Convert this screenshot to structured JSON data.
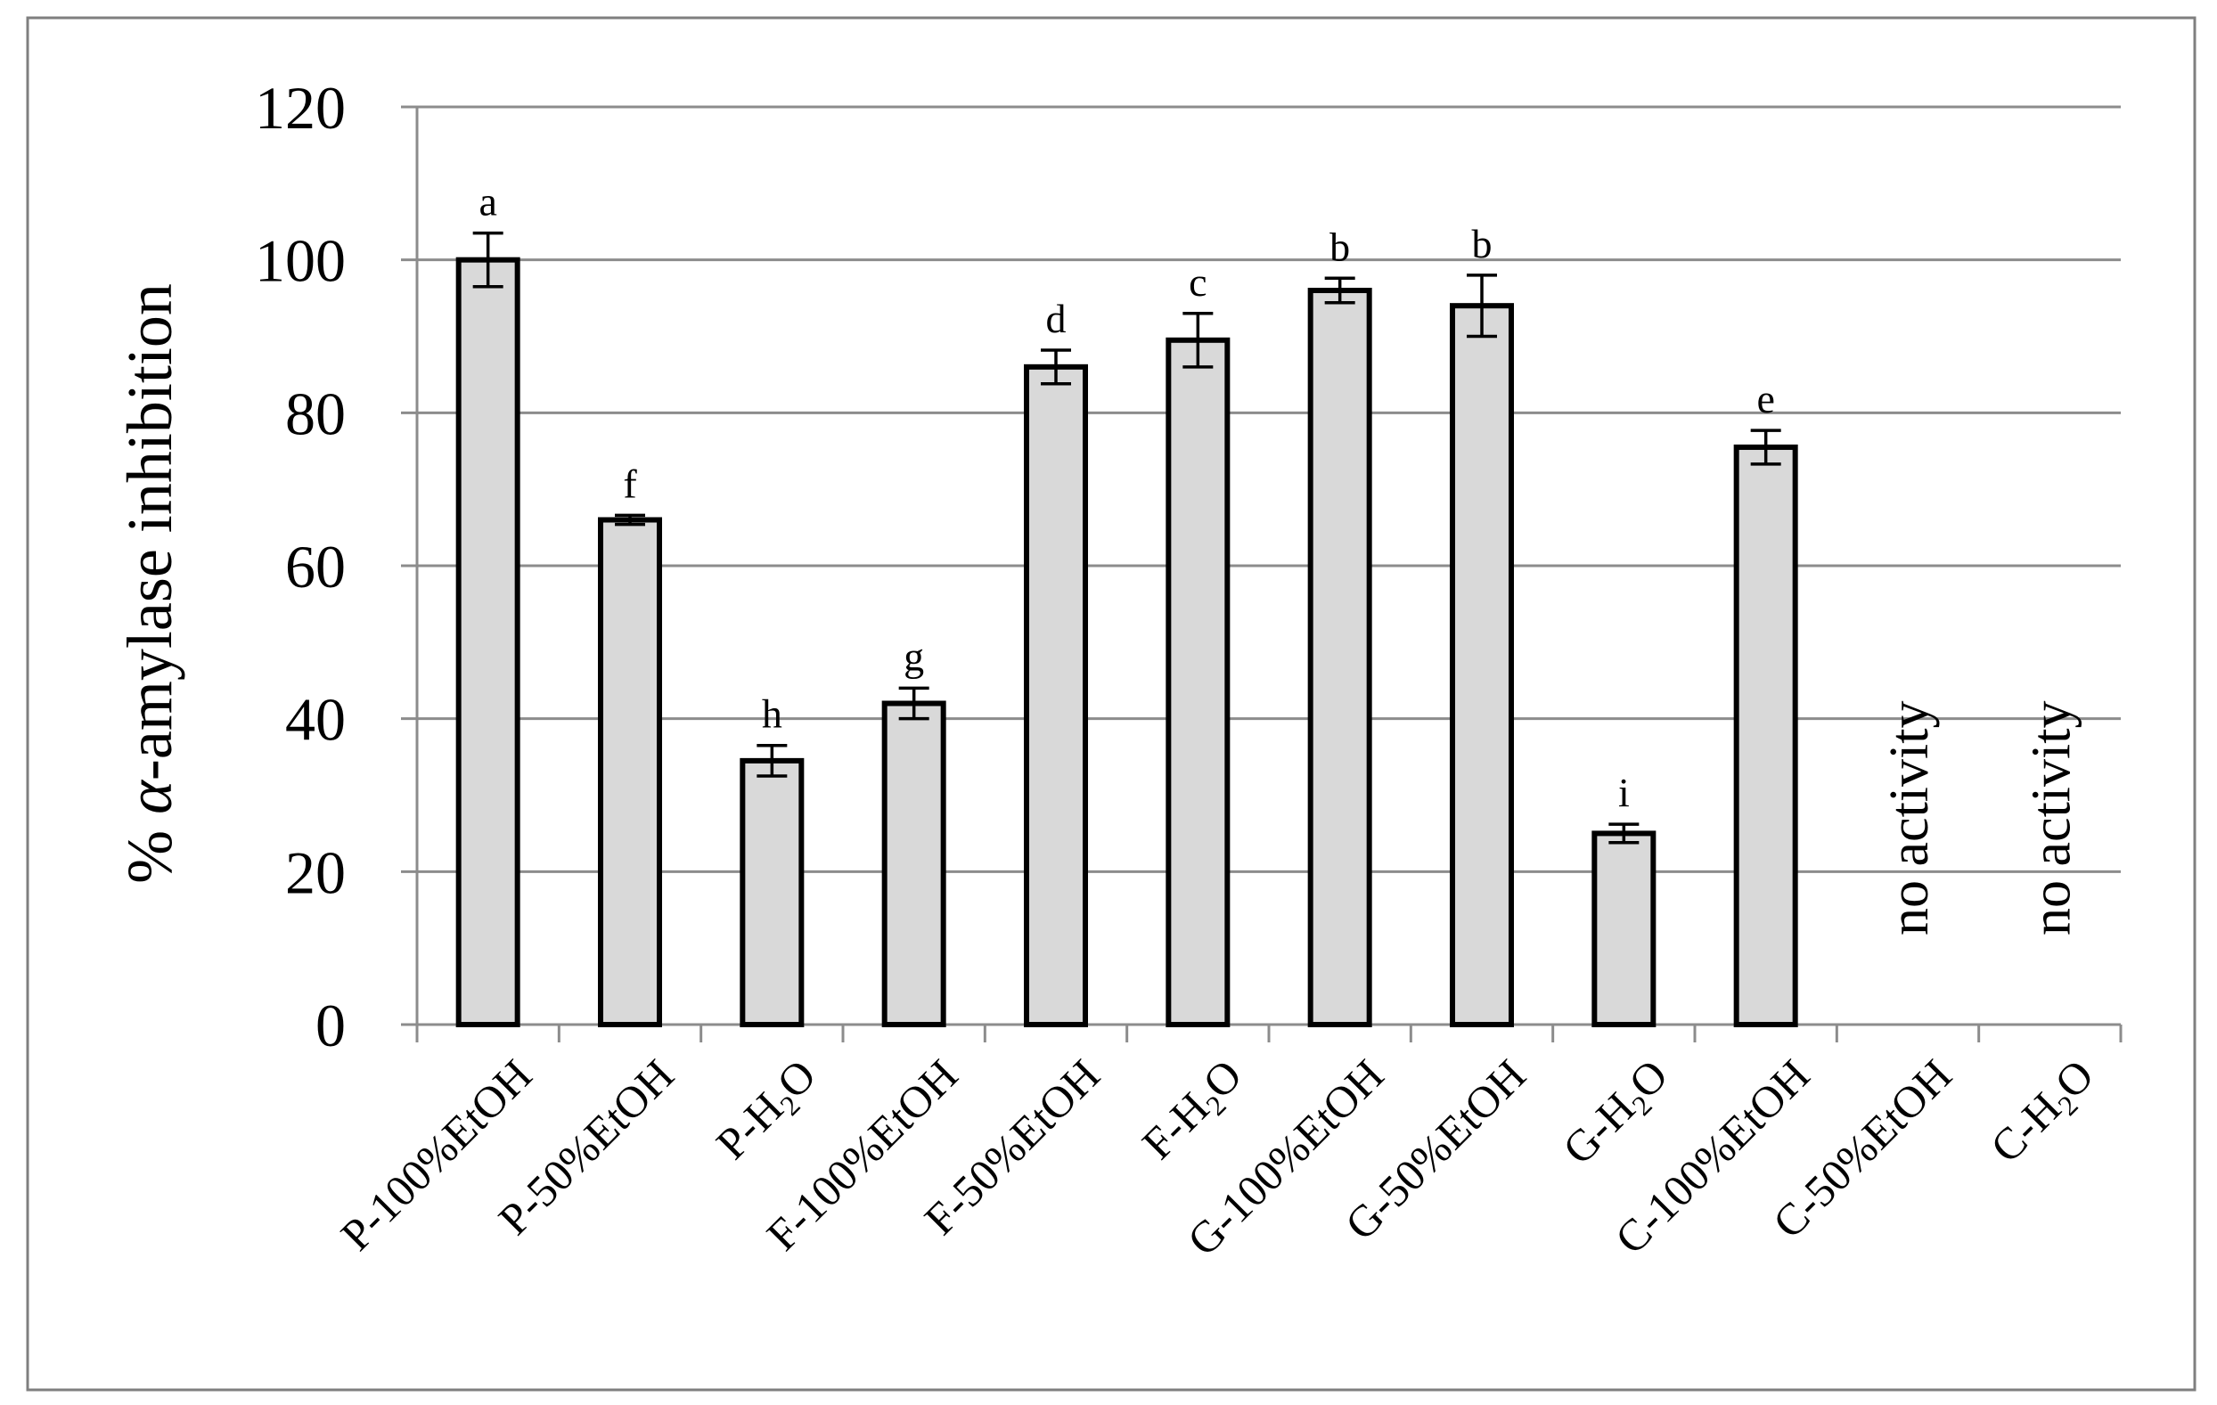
{
  "chart_data": {
    "type": "bar",
    "title": "",
    "xlabel": "",
    "ylabel": "% α-amylase inhibition",
    "ylim": [
      0,
      120
    ],
    "yticks": [
      0,
      20,
      40,
      60,
      80,
      100,
      120
    ],
    "grid": true,
    "legend": "none",
    "categories": [
      "P-100%EtOH",
      "P-50%EtOH",
      "P-H2O",
      "F-100%EtOH",
      "F-50%EtOH",
      "F-H2O",
      "G-100%EtOH",
      "G-50%EtOH",
      "G-H2O",
      "C-100%EtOH",
      "C-50%EtOH",
      "C-H2O"
    ],
    "values": [
      100,
      66,
      34.5,
      42,
      86,
      89.5,
      96,
      94,
      25,
      75.5,
      null,
      null
    ],
    "errors": [
      3.5,
      0.6,
      2,
      2,
      2.2,
      3.5,
      1.6,
      4,
      1.2,
      2.2,
      null,
      null
    ],
    "significance_letters": [
      "a",
      "f",
      "h",
      "g",
      "d",
      "c",
      "b",
      "b",
      "i",
      "e",
      "",
      ""
    ],
    "no_data_label": "no activity",
    "colors": {
      "bar_fill": "#d9d9d9",
      "bar_stroke": "#000000",
      "grid": "#8c8c8c",
      "axis": "#8c8c8c",
      "frame": "#7f7f7f",
      "text": "#000000"
    }
  }
}
